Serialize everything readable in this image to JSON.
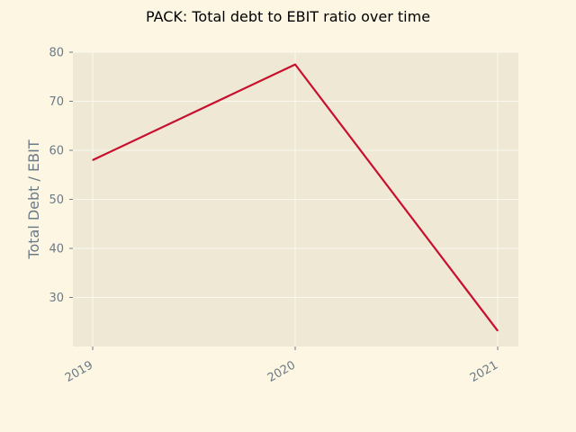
{
  "chart_data": {
    "type": "line",
    "title": "PACK: Total debt to EBIT ratio over time",
    "xlabel": "",
    "ylabel": "Total Debt / EBIT",
    "categories": [
      "2019",
      "2020",
      "2021"
    ],
    "series": [
      {
        "values": [
          58.0,
          77.5,
          23.2
        ]
      }
    ],
    "ylim": [
      20,
      80
    ],
    "yticks": [
      30,
      40,
      50,
      60,
      70,
      80
    ],
    "grid": true,
    "legend": "none",
    "colors": {
      "background": "#fdf6e3",
      "plot_background": "#eee8d5",
      "grid": "#fbf8ef",
      "line": "#c8102e",
      "tick_text": "#6c7a86",
      "title_text": "#000000"
    }
  }
}
